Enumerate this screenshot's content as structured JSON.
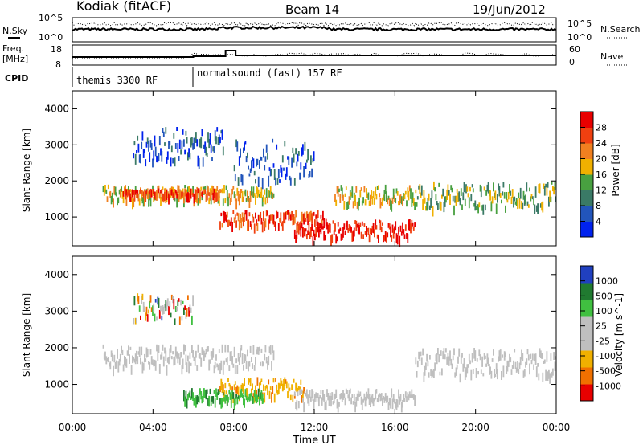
{
  "header": {
    "station": "Kodiak (fitACF)",
    "beam": "Beam 14",
    "date": "19/Jun/2012"
  },
  "noise_panel": {
    "left_label": "N.Sky",
    "right_label": "N.Search",
    "left_ticks": [
      "10^5",
      "10^0"
    ],
    "right_ticks": [
      "10^5",
      "10^0"
    ]
  },
  "freq_panel": {
    "left_label_line1": "Freq.",
    "left_label_line2": "[MHz]",
    "right_label": "Nave",
    "left_ticks": [
      "18",
      "8"
    ],
    "right_ticks": [
      "60",
      "0"
    ]
  },
  "cpid_panel": {
    "label": "CPID",
    "modes": [
      "themis 3300 RF",
      "normalsound (fast) 157 RF"
    ]
  },
  "colors": {
    "power_scale": [
      "#0022ee",
      "#2255bb",
      "#3a7a66",
      "#48a040",
      "#f0b000",
      "#f08020",
      "#f04010",
      "#e80000"
    ],
    "velocity_scale": [
      "#e80000",
      "#f07000",
      "#f0b000",
      "#bfbfbf",
      "#bfbfbf",
      "#40c040",
      "#207a30",
      "#2040c0"
    ],
    "ground_scatter": "#bfbfbf"
  },
  "chart_data": [
    {
      "type": "heatmap",
      "panel": "power",
      "ylabel": "Slant Range [km]",
      "yticks": [
        "1000",
        "2000",
        "3000",
        "4000"
      ],
      "ylim": [
        200,
        4500
      ],
      "xlim": [
        0,
        24
      ],
      "colorbar_label": "Power [dB]",
      "colorbar_ticks": [
        "4",
        "8",
        "12",
        "16",
        "20",
        "24",
        "28"
      ],
      "colorbar_range": [
        0,
        32
      ],
      "bands": [
        {
          "t0": 1.5,
          "t1": 10,
          "r0": 1500,
          "r1": 1900,
          "level": 4
        },
        {
          "t0": 2.5,
          "t1": 7.3,
          "r0": 1650,
          "r1": 1800,
          "level": 6
        },
        {
          "t0": 7.3,
          "t1": 12.5,
          "r0": 800,
          "r1": 1200,
          "level": 6
        },
        {
          "t0": 11,
          "t1": 17,
          "r0": 450,
          "r1": 950,
          "level": 7
        },
        {
          "t0": 3,
          "t1": 7.5,
          "r0": 2600,
          "r1": 3500,
          "level": 1
        },
        {
          "t0": 8,
          "t1": 12,
          "r0": 2000,
          "r1": 3200,
          "level": 1
        },
        {
          "t0": 13,
          "t1": 17,
          "r0": 1400,
          "r1": 1900,
          "level": 4
        },
        {
          "t0": 17,
          "t1": 24,
          "r0": 1300,
          "r1": 2000,
          "level": 3
        }
      ]
    },
    {
      "type": "heatmap",
      "panel": "velocity",
      "xlabel": "Time UT",
      "ylabel": "Slant Range [km]",
      "xticks": [
        "00:00",
        "04:00",
        "08:00",
        "12:00",
        "16:00",
        "20:00",
        "00:00"
      ],
      "yticks": [
        "1000",
        "2000",
        "3000",
        "4000"
      ],
      "ylim": [
        200,
        4500
      ],
      "xlim": [
        0,
        24
      ],
      "colorbar_label": "Velocity [m s^-1]",
      "colorbar_ticks": [
        "1000",
        "500",
        "100",
        "25",
        "-25",
        "-100",
        "-500",
        "-1000"
      ],
      "bands": [
        {
          "t0": 1.5,
          "t1": 10,
          "r0": 1500,
          "r1": 2100,
          "kind": "ground"
        },
        {
          "t0": 7.3,
          "t1": 11.5,
          "r0": 700,
          "r1": 1200,
          "kind": "negative"
        },
        {
          "t0": 5.5,
          "t1": 9.5,
          "r0": 600,
          "r1": 900,
          "kind": "positive_small"
        },
        {
          "t0": 11,
          "t1": 17,
          "r0": 500,
          "r1": 900,
          "kind": "ground"
        },
        {
          "t0": 17,
          "t1": 24,
          "r0": 1300,
          "r1": 2000,
          "kind": "ground"
        },
        {
          "t0": 3,
          "t1": 6,
          "r0": 2800,
          "r1": 3500,
          "kind": "mixed"
        }
      ]
    }
  ]
}
